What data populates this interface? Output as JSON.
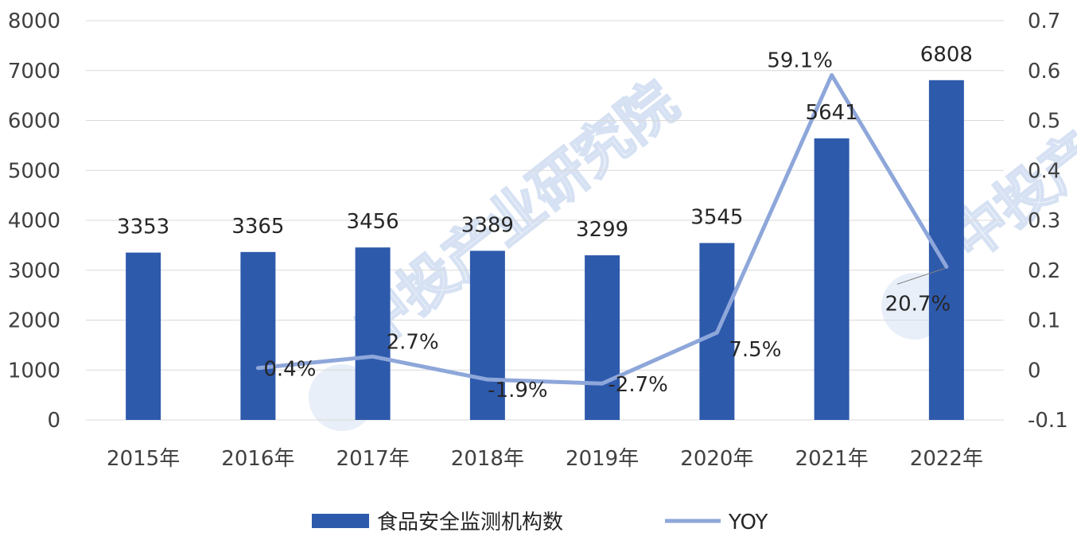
{
  "chart_data": {
    "type": "bar",
    "categories": [
      "2015年",
      "2016年",
      "2017年",
      "2018年",
      "2019年",
      "2020年",
      "2021年",
      "2022年"
    ],
    "series": [
      {
        "name": "食品安全监测机构数",
        "type": "bar",
        "axis": "left",
        "values": [
          3353,
          3365,
          3456,
          3389,
          3299,
          3545,
          5641,
          6808
        ],
        "labels": [
          "3353",
          "3365",
          "3456",
          "3389",
          "3299",
          "3545",
          "5641",
          "6808"
        ]
      },
      {
        "name": "YOY",
        "type": "line",
        "axis": "right",
        "values": [
          null,
          0.004,
          0.027,
          -0.019,
          -0.027,
          0.075,
          0.591,
          0.207
        ],
        "labels": [
          "",
          "0.4%",
          "2.7%",
          "-1.9%",
          "-2.7%",
          "7.5%",
          "59.1%",
          "20.7%"
        ]
      }
    ],
    "y_left": {
      "range": [
        0,
        8000
      ],
      "ticks": [
        "0",
        "1000",
        "2000",
        "3000",
        "4000",
        "5000",
        "6000",
        "7000",
        "8000"
      ]
    },
    "y_right": {
      "range": [
        -0.1,
        0.7
      ],
      "ticks": [
        "-0.1",
        "0",
        "0.1",
        "0.2",
        "0.3",
        "0.4",
        "0.5",
        "0.6",
        "0.7"
      ]
    },
    "grid": true,
    "legend_position": "bottom",
    "colors": {
      "bar": "#2e5aac",
      "line": "#8ea7da",
      "grid": "#d9d9d9"
    }
  },
  "watermark": "中投产业研究院"
}
